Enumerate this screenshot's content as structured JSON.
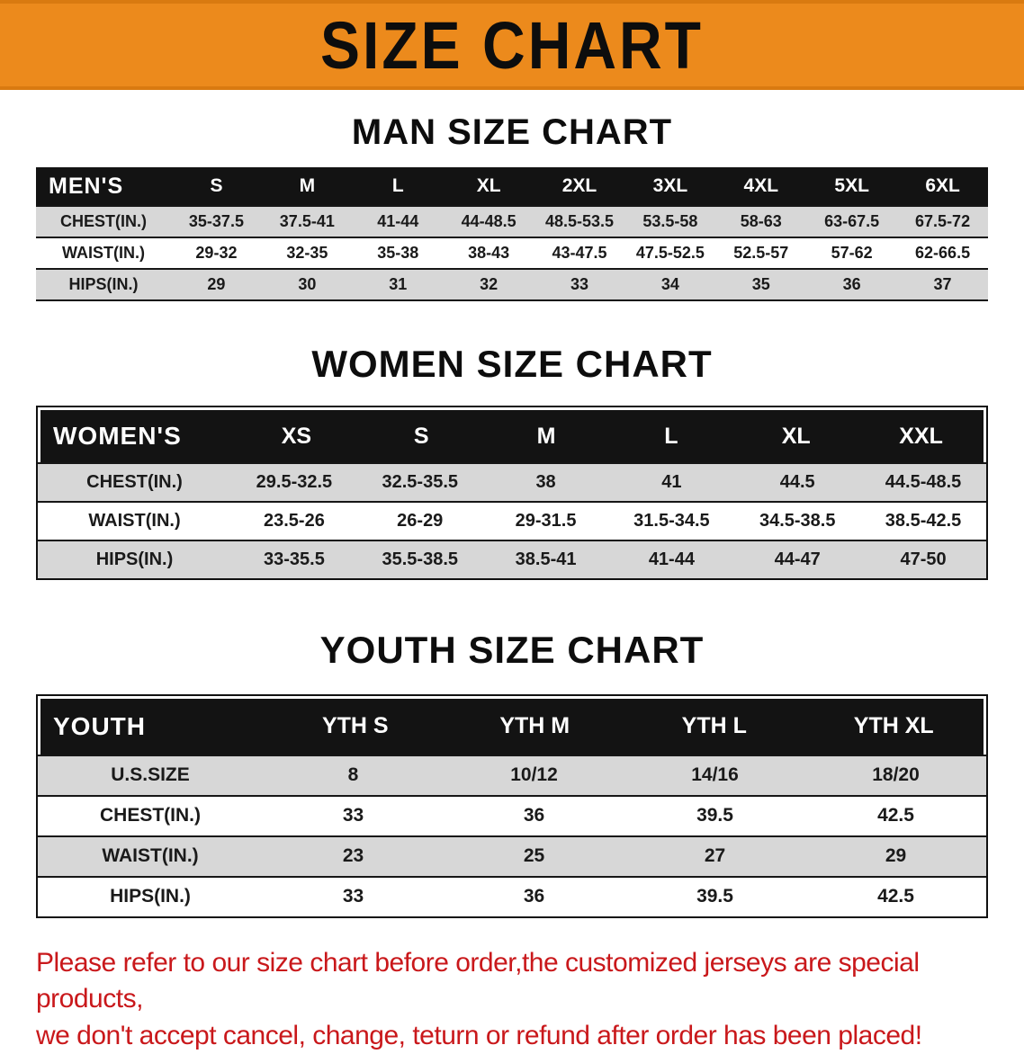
{
  "banner": {
    "title": "SIZE CHART",
    "bg_color": "#ec8a1c",
    "text_color": "#0d0d0d"
  },
  "sections": [
    {
      "heading": "MAN SIZE CHART",
      "table": {
        "header_label": "MEN'S",
        "columns": [
          "S",
          "M",
          "L",
          "XL",
          "2XL",
          "3XL",
          "4XL",
          "5XL",
          "6XL"
        ],
        "rows": [
          {
            "label": "CHEST(IN.)",
            "values": [
              "35-37.5",
              "37.5-41",
              "41-44",
              "44-48.5",
              "48.5-53.5",
              "53.5-58",
              "58-63",
              "63-67.5",
              "67.5-72"
            ]
          },
          {
            "label": "WAIST(IN.)",
            "values": [
              "29-32",
              "32-35",
              "35-38",
              "38-43",
              "43-47.5",
              "47.5-52.5",
              "52.5-57",
              "57-62",
              "62-66.5"
            ]
          },
          {
            "label": "HIPS(IN.)",
            "values": [
              "29",
              "30",
              "31",
              "32",
              "33",
              "34",
              "35",
              "36",
              "37"
            ]
          }
        ]
      }
    },
    {
      "heading": "WOMEN SIZE CHART",
      "table": {
        "header_label": "WOMEN'S",
        "columns": [
          "XS",
          "S",
          "M",
          "L",
          "XL",
          "XXL"
        ],
        "rows": [
          {
            "label": "CHEST(IN.)",
            "values": [
              "29.5-32.5",
              "32.5-35.5",
              "38",
              "41",
              "44.5",
              "44.5-48.5"
            ]
          },
          {
            "label": "WAIST(IN.)",
            "values": [
              "23.5-26",
              "26-29",
              "29-31.5",
              "31.5-34.5",
              "34.5-38.5",
              "38.5-42.5"
            ]
          },
          {
            "label": "HIPS(IN.)",
            "values": [
              "33-35.5",
              "35.5-38.5",
              "38.5-41",
              "41-44",
              "44-47",
              "47-50"
            ]
          }
        ]
      }
    },
    {
      "heading": "YOUTH SIZE CHART",
      "table": {
        "header_label": "YOUTH",
        "columns": [
          "YTH S",
          "YTH M",
          "YTH L",
          "YTH XL"
        ],
        "rows": [
          {
            "label": "U.S.SIZE",
            "values": [
              "8",
              "10/12",
              "14/16",
              "18/20"
            ]
          },
          {
            "label": "CHEST(IN.)",
            "values": [
              "33",
              "36",
              "39.5",
              "42.5"
            ]
          },
          {
            "label": "WAIST(IN.)",
            "values": [
              "23",
              "25",
              "27",
              "29"
            ]
          },
          {
            "label": "HIPS(IN.)",
            "values": [
              "33",
              "36",
              "39.5",
              "42.5"
            ]
          }
        ]
      }
    }
  ],
  "disclaimer": {
    "line1": "Please refer to our size chart before order,the customized jerseys are special products,",
    "line2": "we don't accept cancel, change, teturn or refund after order has been placed!"
  },
  "colors": {
    "banner_orange": "#ec8a1c",
    "table_header_black": "#131313",
    "stripe_gray": "#d7d7d7",
    "disclaimer_red": "#c9181b"
  }
}
